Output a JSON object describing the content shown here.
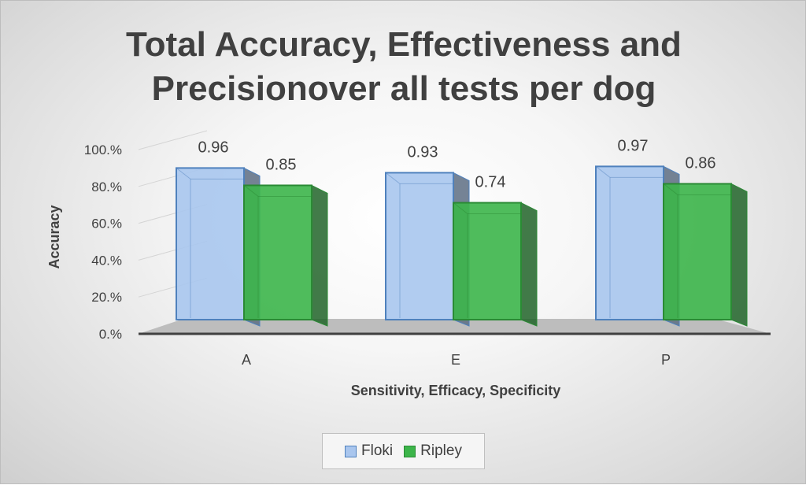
{
  "chart_data": {
    "type": "bar",
    "title_lines": [
      "Total Accuracy, Effectiveness and",
      "Precisionover all tests per dog"
    ],
    "xlabel": "Sensitivity, Efficacy, Specificity",
    "ylabel": "Accuracy",
    "categories": [
      "A",
      "E",
      "P"
    ],
    "series": [
      {
        "name": "Floki",
        "values": [
          0.96,
          0.93,
          0.97
        ],
        "labels": [
          "0.96",
          "0.93",
          "0.97"
        ],
        "color": "#a9c6ee",
        "edge": "#4f81bd"
      },
      {
        "name": "Ripley",
        "values": [
          0.85,
          0.74,
          0.86
        ],
        "labels": [
          "0.85",
          "0.74",
          "0.86"
        ],
        "color": "#3cb54a",
        "edge": "#2a8a34"
      }
    ],
    "yticks": [
      "0.%",
      "20.%",
      "40.%",
      "60.%",
      "80.%",
      "100.%"
    ],
    "ylim": [
      0,
      1
    ],
    "grid": true,
    "legend_position": "bottom",
    "style": "3d-clustered-column"
  }
}
